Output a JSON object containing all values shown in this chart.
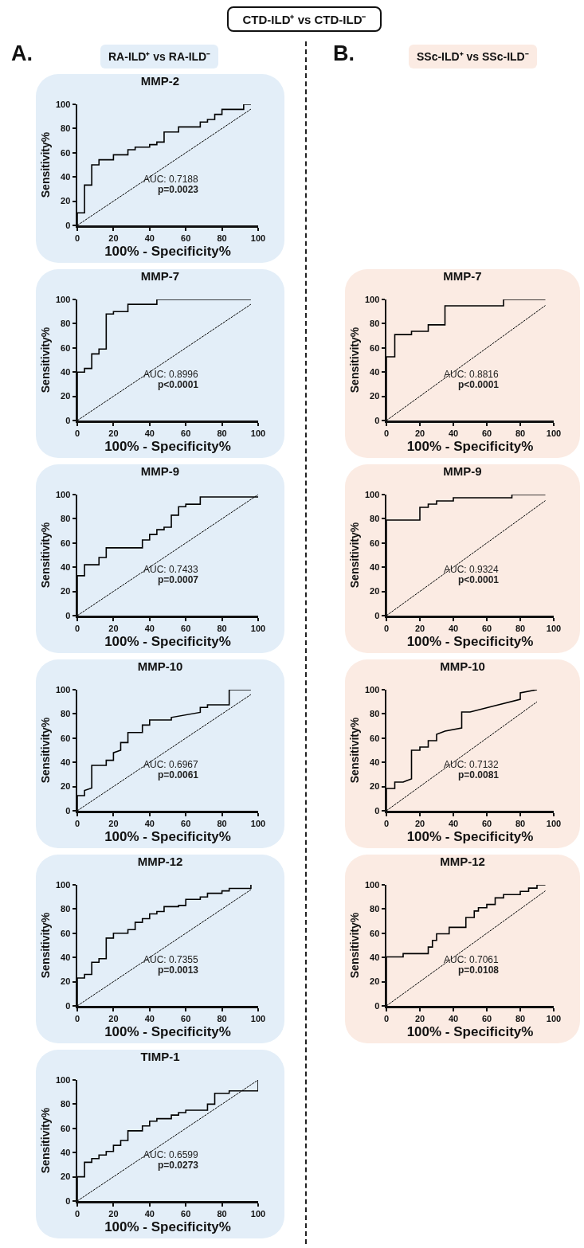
{
  "chart_data": [
    {
      "type": "line",
      "title": "MMP-2",
      "xlabel": "100% - Specificity%",
      "ylabel": "Sensitivity%",
      "xlim": [
        0,
        100
      ],
      "ylim": [
        0,
        100
      ],
      "xticks": [
        0,
        20,
        40,
        60,
        80,
        100
      ],
      "yticks": [
        0,
        20,
        40,
        60,
        80,
        100
      ],
      "grid": false,
      "line_style": "solid",
      "annotations": [
        "CTD-ILD⁺ vs CTD-ILD⁻",
        "A.",
        "RA-ILD⁺ vs RA-ILD⁻",
        "AUC: 0.7188",
        "p=0.0023"
      ],
      "series": [
        {
          "color": "#000000",
          "x": [
            0,
            0,
            4,
            4,
            8,
            8,
            12,
            12,
            20,
            20,
            28,
            28,
            32,
            32,
            40,
            40,
            44,
            44,
            48,
            48,
            56,
            56,
            68,
            68,
            72,
            72,
            76,
            76,
            80,
            80,
            92,
            92,
            96
          ],
          "values": [
            0,
            10.4,
            10.4,
            33.3,
            33.3,
            50,
            50,
            54.2,
            54.2,
            58.3,
            58.3,
            62.5,
            62.5,
            64.6,
            64.6,
            66.7,
            66.7,
            68.8,
            68.8,
            77.1,
            77.1,
            81.3,
            81.3,
            85.4,
            85.4,
            87.5,
            87.5,
            91.7,
            91.7,
            95.8,
            95.8,
            100,
            100
          ]
        },
        {
          "color": "#000000",
          "line_style": "dashed",
          "x": [
            0,
            96
          ],
          "values": [
            0,
            96
          ]
        }
      ]
    },
    {
      "type": "line",
      "title": "MMP-7",
      "xlabel": "100% - Specificity%",
      "ylabel": "Sensitivity%",
      "xlim": [
        0,
        100
      ],
      "ylim": [
        0,
        100
      ],
      "xticks": [
        0,
        20,
        40,
        60,
        80,
        100
      ],
      "yticks": [
        0,
        20,
        40,
        60,
        80,
        100
      ],
      "grid": false,
      "line_style": "solid",
      "annotations": [
        "AUC: 0.8996",
        "p<0.0001"
      ],
      "series": [
        {
          "color": "#000000",
          "x": [
            0,
            0,
            4,
            4,
            8,
            8,
            12,
            12,
            16,
            16,
            20,
            20,
            28,
            28,
            44,
            44,
            96
          ],
          "values": [
            0,
            40,
            40,
            43,
            43,
            55,
            55,
            59,
            59,
            88,
            88,
            90,
            90,
            96,
            96,
            100,
            100
          ]
        },
        {
          "color": "#000000",
          "line_style": "dashed",
          "x": [
            0,
            96
          ],
          "values": [
            0,
            96
          ]
        }
      ]
    },
    {
      "type": "line",
      "title": "MMP-9",
      "xlabel": "100% - Specificity%",
      "ylabel": "Sensitivity%",
      "xlim": [
        0,
        100
      ],
      "ylim": [
        0,
        100
      ],
      "xticks": [
        0,
        20,
        40,
        60,
        80,
        100
      ],
      "yticks": [
        0,
        20,
        40,
        60,
        80,
        100
      ],
      "grid": false,
      "line_style": "solid",
      "annotations": [
        "AUC: 0.7433",
        "p=0.0007"
      ],
      "series": [
        {
          "color": "#000000",
          "x": [
            0,
            0,
            4,
            4,
            12,
            12,
            16,
            16,
            36,
            36,
            40,
            40,
            44,
            44,
            48,
            48,
            52,
            52,
            56,
            56,
            60,
            60,
            68,
            68,
            100
          ],
          "values": [
            0,
            33,
            33,
            42,
            42,
            48,
            48,
            56,
            56,
            62.5,
            62.5,
            67,
            67,
            71,
            71,
            73,
            73,
            83,
            83,
            90,
            90,
            92,
            92,
            98,
            98
          ]
        },
        {
          "color": "#000000",
          "line_style": "dashed",
          "x": [
            0,
            100
          ],
          "values": [
            0,
            100
          ]
        }
      ]
    },
    {
      "type": "line",
      "title": "MMP-10",
      "xlabel": "100% - Specificity%",
      "ylabel": "Sensitivity%",
      "xlim": [
        0,
        100
      ],
      "ylim": [
        0,
        100
      ],
      "xticks": [
        0,
        20,
        40,
        60,
        80,
        100
      ],
      "yticks": [
        0,
        20,
        40,
        60,
        80,
        100
      ],
      "grid": false,
      "line_style": "solid",
      "annotations": [
        "AUC: 0.6967",
        "p=0.0061"
      ],
      "series": [
        {
          "color": "#000000",
          "x": [
            0,
            0,
            4,
            4,
            8,
            8,
            16,
            16,
            20,
            20,
            24,
            24,
            28,
            28,
            36,
            36,
            40,
            40,
            52,
            52,
            68,
            68,
            72,
            72,
            84,
            84,
            96
          ],
          "values": [
            0,
            12.5,
            12.5,
            16.7,
            18.8,
            37.5,
            37.5,
            41.7,
            41.7,
            47.9,
            50,
            56.3,
            56.3,
            64.6,
            64.6,
            70.8,
            70.8,
            75,
            75,
            77.1,
            81.3,
            85.4,
            85.4,
            87.5,
            87.5,
            100,
            100
          ]
        },
        {
          "color": "#000000",
          "line_style": "dashed",
          "x": [
            0,
            96
          ],
          "values": [
            0,
            96
          ]
        }
      ]
    },
    {
      "type": "line",
      "title": "MMP-12",
      "xlabel": "100% - Specificity%",
      "ylabel": "Sensitivity%",
      "xlim": [
        0,
        100
      ],
      "ylim": [
        0,
        100
      ],
      "xticks": [
        0,
        20,
        40,
        60,
        80,
        100
      ],
      "yticks": [
        0,
        20,
        40,
        60,
        80,
        100
      ],
      "grid": false,
      "line_style": "solid",
      "annotations": [
        "AUC: 0.7355",
        "p=0.0013"
      ],
      "series": [
        {
          "color": "#000000",
          "x": [
            0,
            0,
            4,
            4,
            8,
            8,
            12,
            12,
            16,
            16,
            20,
            20,
            28,
            28,
            32,
            32,
            36,
            36,
            40,
            40,
            44,
            44,
            48,
            48,
            56,
            56,
            60,
            60,
            68,
            68,
            72,
            72,
            80,
            80,
            84,
            84,
            96,
            96
          ],
          "values": [
            0,
            23,
            23,
            26,
            26,
            36,
            36,
            39,
            39,
            56,
            56,
            60,
            60,
            63,
            63,
            69,
            69,
            72,
            72,
            76,
            76,
            78,
            78,
            82,
            82,
            83,
            83,
            88,
            88,
            90,
            90,
            93,
            93,
            95,
            95,
            97,
            97,
            100
          ]
        },
        {
          "color": "#000000",
          "line_style": "dashed",
          "x": [
            0,
            96
          ],
          "values": [
            0,
            96
          ]
        }
      ]
    },
    {
      "type": "line",
      "title": "TIMP-1",
      "xlabel": "100% - Specificity%",
      "ylabel": "Sensitivity%",
      "xlim": [
        0,
        100
      ],
      "ylim": [
        0,
        100
      ],
      "xticks": [
        0,
        20,
        40,
        60,
        80,
        100
      ],
      "yticks": [
        0,
        20,
        40,
        60,
        80,
        100
      ],
      "grid": false,
      "line_style": "solid",
      "annotations": [
        "AUC: 0.6599",
        "p=0.0273"
      ],
      "series": [
        {
          "color": "#000000",
          "x": [
            0,
            0,
            4,
            4,
            8,
            8,
            12,
            12,
            16,
            16,
            20,
            20,
            24,
            24,
            28,
            28,
            36,
            36,
            40,
            40,
            44,
            44,
            52,
            52,
            56,
            56,
            60,
            60,
            72,
            72,
            76,
            76,
            84,
            84,
            100,
            100
          ],
          "values": [
            0,
            20,
            20,
            32,
            32,
            35,
            35,
            38,
            38,
            41,
            41,
            46,
            46,
            50,
            50,
            58,
            58,
            62,
            62,
            66,
            66,
            68,
            68,
            71,
            71,
            73,
            73,
            75,
            75,
            80,
            80,
            89,
            89,
            91,
            91,
            100
          ]
        },
        {
          "color": "#000000",
          "line_style": "dashed",
          "x": [
            0,
            100
          ],
          "values": [
            0,
            100
          ]
        }
      ]
    },
    {
      "type": "line",
      "title": "MMP-7",
      "xlabel": "100% - Specificity%",
      "ylabel": "Sensitivity%",
      "xlim": [
        0,
        100
      ],
      "ylim": [
        0,
        100
      ],
      "xticks": [
        0,
        20,
        40,
        60,
        80,
        100
      ],
      "yticks": [
        0,
        20,
        40,
        60,
        80,
        100
      ],
      "grid": false,
      "line_style": "solid",
      "annotations": [
        "B.",
        "SSc-ILD⁺ vs SSc-ILD⁻",
        "AUC: 0.8816",
        "p<0.0001"
      ],
      "series": [
        {
          "color": "#000000",
          "x": [
            0,
            0,
            5,
            5,
            15,
            15,
            25,
            25,
            35,
            35,
            70,
            70,
            95
          ],
          "values": [
            0,
            52.6,
            52.6,
            71,
            71,
            73.7,
            73.7,
            79,
            79,
            94.7,
            94.7,
            100,
            100
          ]
        },
        {
          "color": "#000000",
          "line_style": "dashed",
          "x": [
            0,
            95
          ],
          "values": [
            0,
            95
          ]
        }
      ]
    },
    {
      "type": "line",
      "title": "MMP-9",
      "xlabel": "100% - Specificity%",
      "ylabel": "Sensitivity%",
      "xlim": [
        0,
        100
      ],
      "ylim": [
        0,
        100
      ],
      "xticks": [
        0,
        20,
        40,
        60,
        80,
        100
      ],
      "yticks": [
        0,
        20,
        40,
        60,
        80,
        100
      ],
      "grid": false,
      "line_style": "solid",
      "annotations": [
        "AUC: 0.9324",
        "p<0.0001"
      ],
      "series": [
        {
          "color": "#000000",
          "x": [
            0,
            0,
            20,
            20,
            25,
            25,
            30,
            30,
            40,
            40,
            75,
            75,
            95
          ],
          "values": [
            0,
            78.9,
            78.9,
            89.5,
            89.5,
            92.1,
            92.1,
            94.7,
            94.7,
            97.4,
            97.4,
            100,
            100
          ]
        },
        {
          "color": "#000000",
          "line_style": "dashed",
          "x": [
            0,
            95
          ],
          "values": [
            0,
            95
          ]
        }
      ]
    },
    {
      "type": "line",
      "title": "MMP-10",
      "xlabel": "100% - Specificity%",
      "ylabel": "Sensitivity%",
      "xlim": [
        0,
        100
      ],
      "ylim": [
        0,
        100
      ],
      "xticks": [
        0,
        20,
        40,
        60,
        80,
        100
      ],
      "yticks": [
        0,
        20,
        40,
        60,
        80,
        100
      ],
      "grid": false,
      "line_style": "solid",
      "annotations": [
        "AUC: 0.7132",
        "p=0.0081"
      ],
      "series": [
        {
          "color": "#000000",
          "x": [
            0,
            0,
            5,
            5,
            10,
            15,
            15,
            20,
            20,
            25,
            25,
            30,
            30,
            35,
            45,
            45,
            50,
            65,
            80,
            80,
            90
          ],
          "values": [
            0,
            18.4,
            18.4,
            23.7,
            23.7,
            26.3,
            50,
            50,
            52.6,
            52.6,
            57.9,
            57.9,
            63.2,
            65.8,
            68.4,
            81.6,
            81.6,
            86.8,
            92.1,
            97.4,
            100
          ]
        },
        {
          "color": "#000000",
          "line_style": "dashed",
          "x": [
            0,
            90
          ],
          "values": [
            0,
            90
          ]
        }
      ]
    },
    {
      "type": "line",
      "title": "MMP-12",
      "xlabel": "100% - Specificity%",
      "ylabel": "Sensitivity%",
      "xlim": [
        0,
        100
      ],
      "ylim": [
        0,
        100
      ],
      "xticks": [
        0,
        20,
        40,
        60,
        80,
        100
      ],
      "yticks": [
        0,
        20,
        40,
        60,
        80,
        100
      ],
      "grid": false,
      "line_style": "solid",
      "annotations": [
        "AUC: 0.7061",
        "p=0.0108"
      ],
      "series": [
        {
          "color": "#000000",
          "x": [
            0,
            0,
            10,
            10,
            25,
            25,
            27.5,
            27.5,
            30,
            30,
            37.5,
            37.5,
            47.5,
            47.5,
            52.5,
            52.5,
            55,
            55,
            60,
            60,
            65,
            65,
            70,
            70,
            80,
            80,
            85,
            85,
            90,
            90,
            95
          ],
          "values": [
            0,
            40.5,
            40.5,
            43.2,
            43.2,
            48.6,
            48.6,
            54.1,
            54.1,
            59.5,
            59.5,
            64.9,
            64.9,
            73,
            73,
            78.4,
            78.4,
            81.1,
            81.1,
            83.8,
            83.8,
            89.2,
            89.2,
            91.9,
            91.9,
            94.6,
            94.6,
            97.3,
            97.3,
            100,
            100
          ]
        },
        {
          "color": "#000000",
          "line_style": "dashed",
          "x": [
            0,
            95
          ],
          "values": [
            0,
            95
          ]
        }
      ]
    }
  ]
}
